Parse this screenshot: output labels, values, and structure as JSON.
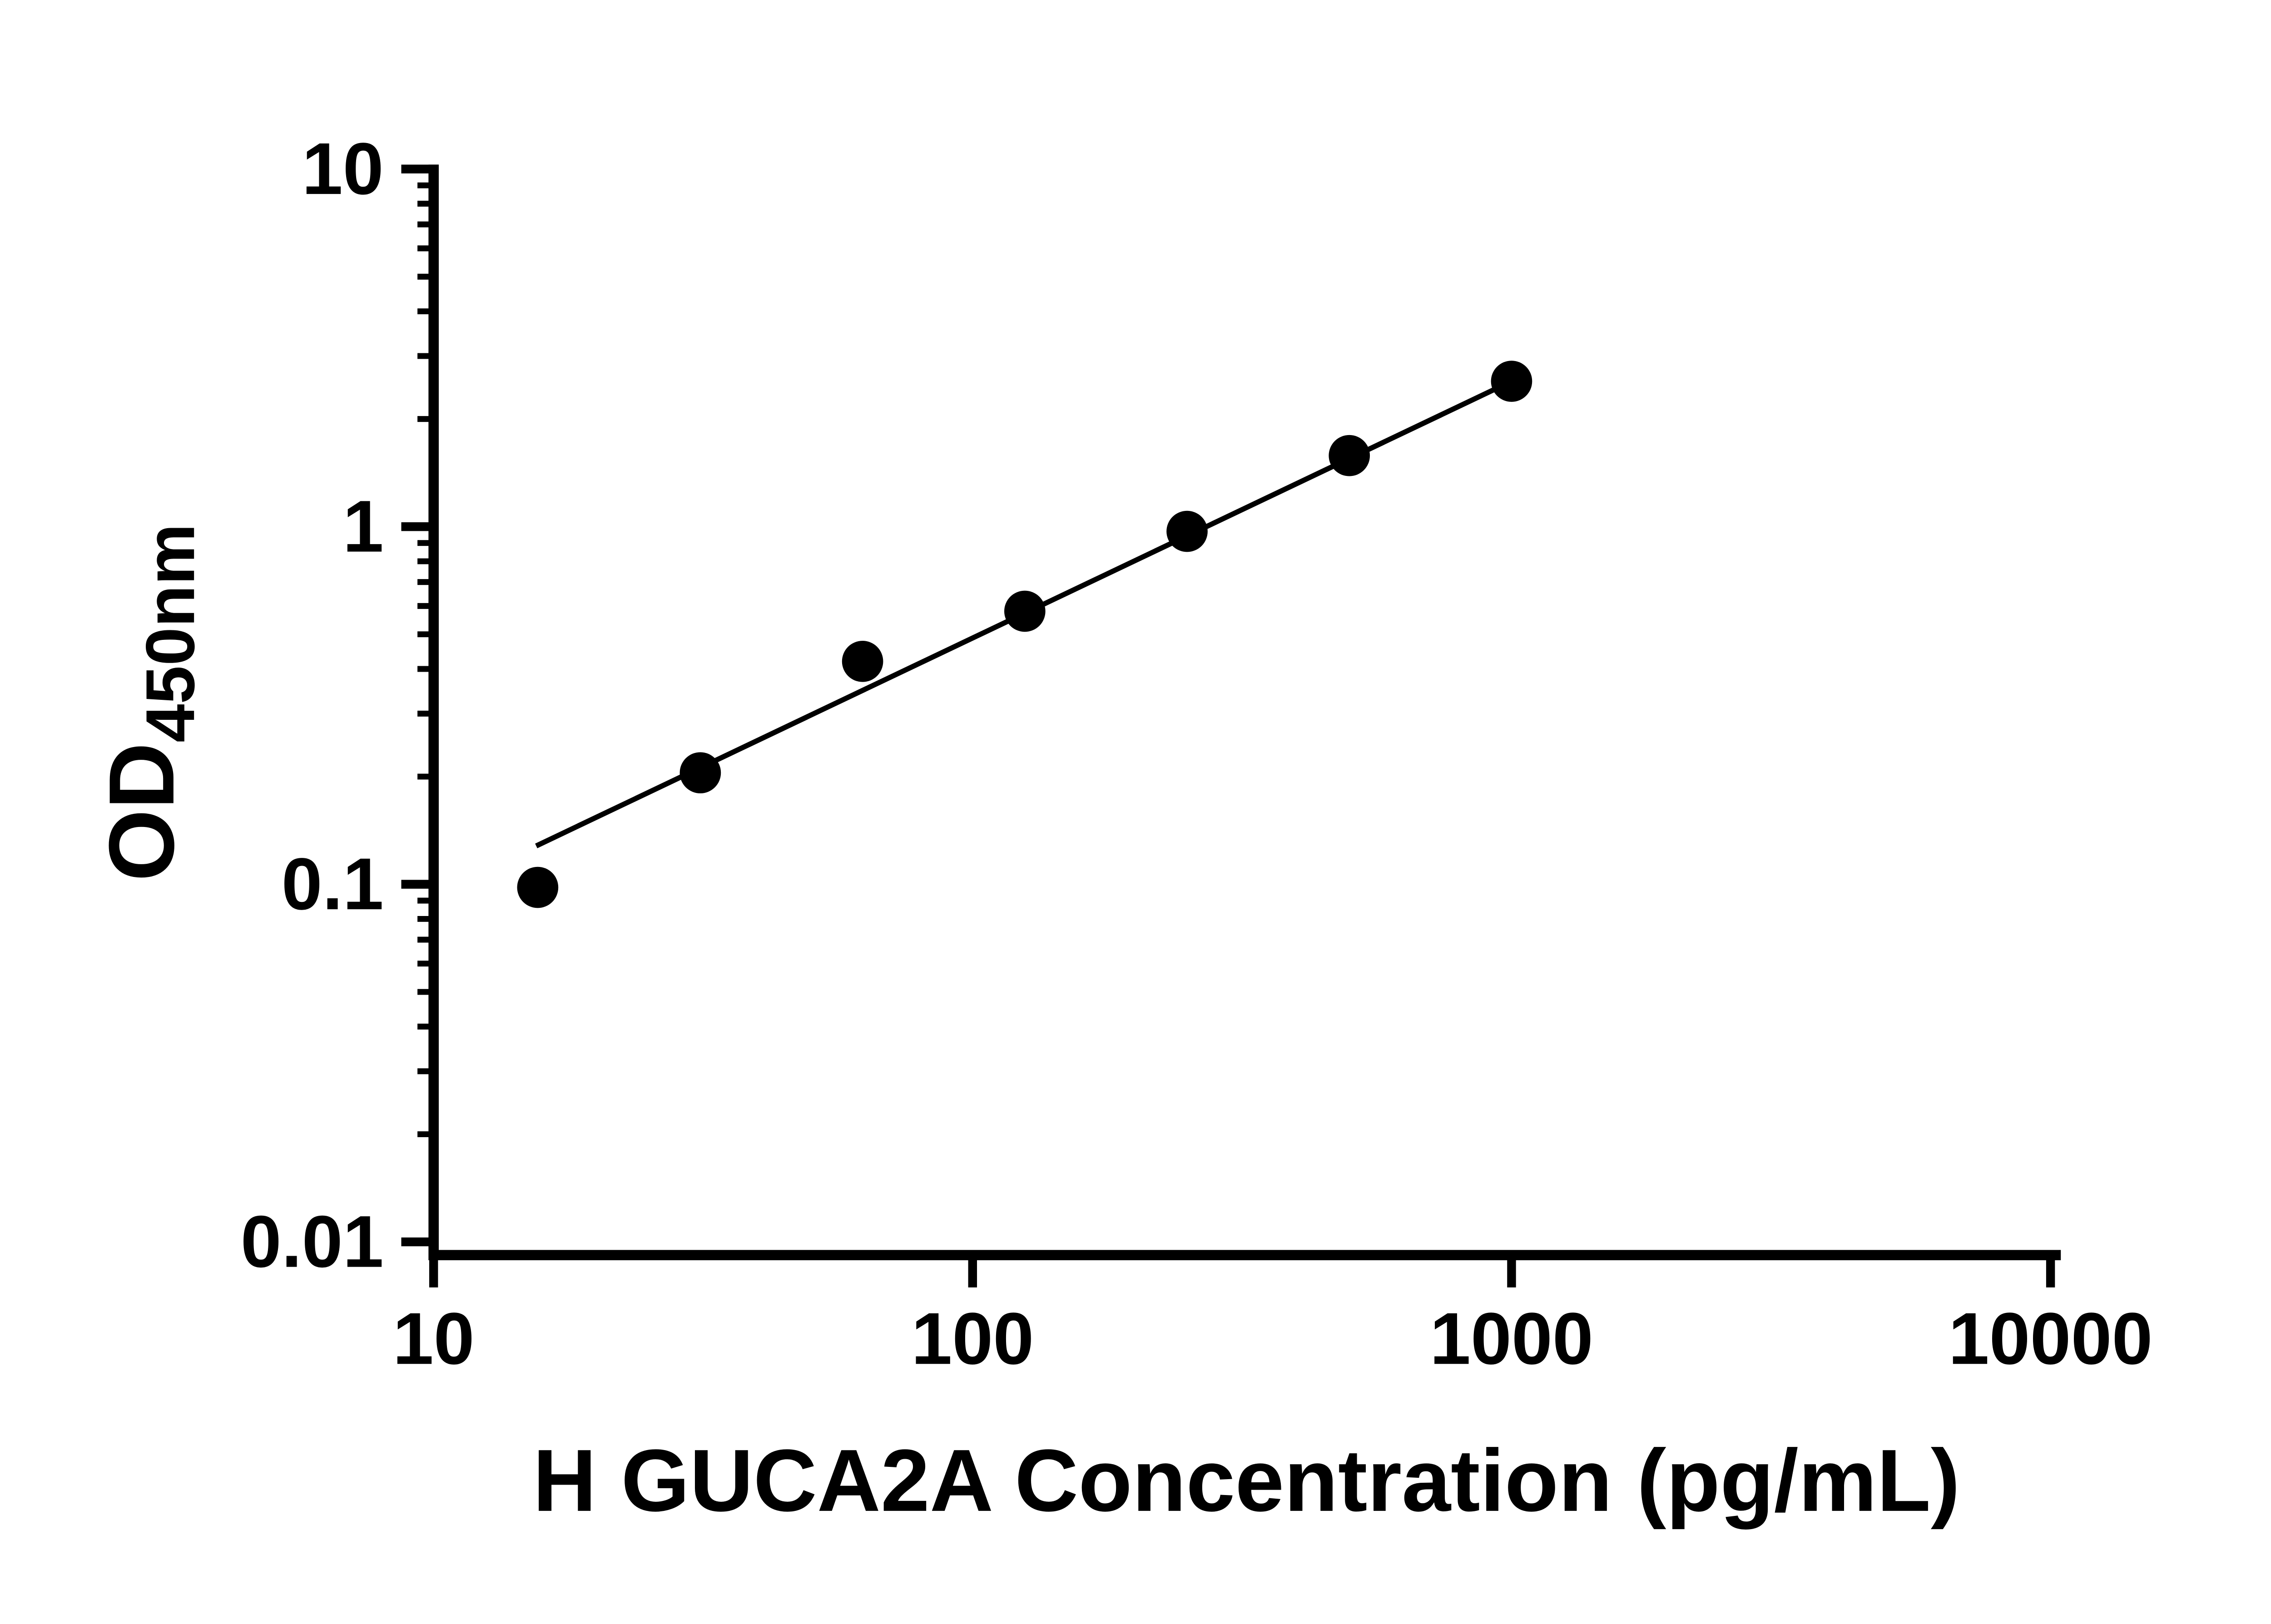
{
  "chart_data": {
    "type": "scatter",
    "title": "",
    "xlabel": "H GUCA2A Concentration (pg/mL)",
    "ylabel": "OD450nm",
    "ylabel_main": "OD",
    "ylabel_sub": "450nm",
    "x_scale": "log",
    "y_scale": "log",
    "xlim": [
      10,
      10000
    ],
    "ylim": [
      0.01,
      10
    ],
    "x_ticks": [
      10,
      100,
      1000,
      10000
    ],
    "x_tick_labels": [
      "10",
      "100",
      "1000",
      "10000"
    ],
    "y_ticks": [
      10,
      1,
      0.1,
      0.01
    ],
    "y_tick_labels": [
      "10",
      "1",
      "0.1",
      "0.01"
    ],
    "grid": false,
    "legend": "none",
    "marker_color": "#000000",
    "line_color": "#000000",
    "axis_color": "#000000",
    "points": [
      {
        "x": 15.6,
        "y": 0.098
      },
      {
        "x": 31.25,
        "y": 0.205
      },
      {
        "x": 62.5,
        "y": 0.42
      },
      {
        "x": 125,
        "y": 0.58
      },
      {
        "x": 250,
        "y": 0.97
      },
      {
        "x": 500,
        "y": 1.58
      },
      {
        "x": 1000,
        "y": 2.55
      }
    ],
    "trendline": {
      "x1": 15.5,
      "y1": 0.128,
      "x2": 1000,
      "y2": 2.55
    }
  }
}
